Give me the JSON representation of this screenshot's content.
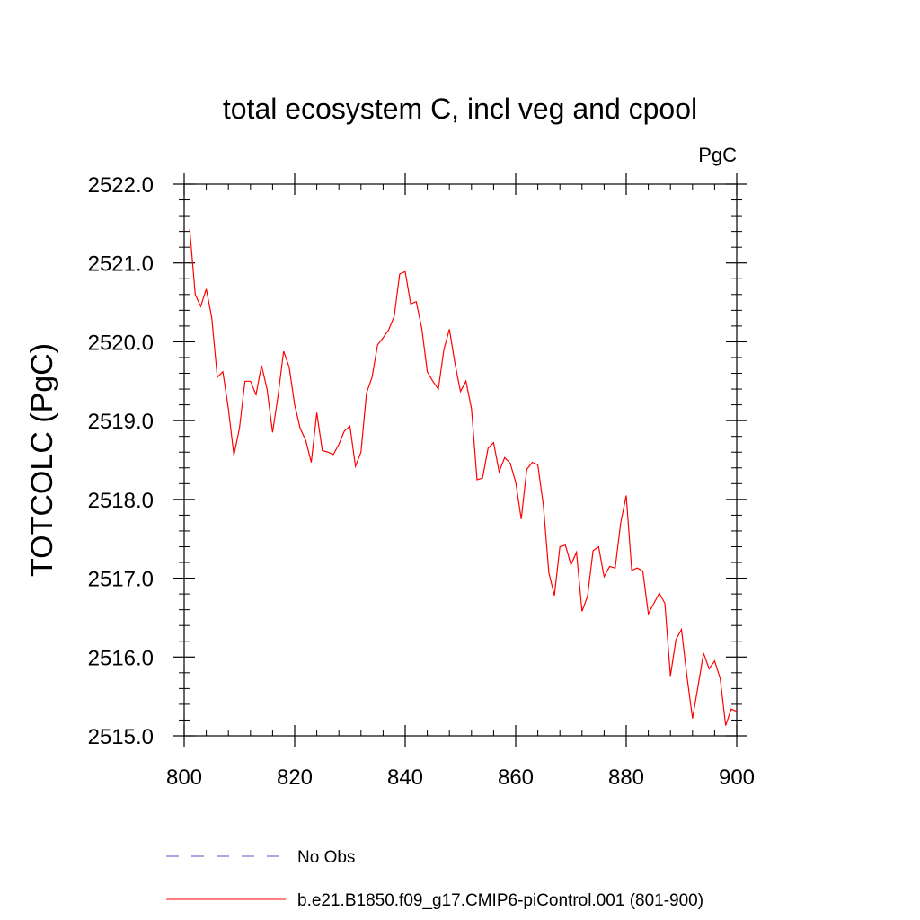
{
  "chart_data": {
    "type": "line",
    "title": "total ecosystem C, incl veg and cpool",
    "units_label": "PgC",
    "ylabel": "TOTCOLC  (PgC)",
    "xlabel": "",
    "xlim": [
      800,
      900
    ],
    "ylim": [
      2515.0,
      2522.0
    ],
    "x_ticks": [
      800,
      820,
      840,
      860,
      880,
      900
    ],
    "x_tick_labels": [
      "800",
      "820",
      "840",
      "860",
      "880",
      "900"
    ],
    "y_ticks": [
      2515.0,
      2516.0,
      2517.0,
      2518.0,
      2519.0,
      2520.0,
      2521.0,
      2522.0
    ],
    "y_tick_labels": [
      "2515.0",
      "2516.0",
      "2517.0",
      "2518.0",
      "2519.0",
      "2520.0",
      "2521.0",
      "2522.0"
    ],
    "grid": false,
    "legend_position": "bottom",
    "series": [
      {
        "name": "b.e21.B1850.f09_g17.CMIP6-piControl.001 (801-900)",
        "color": "#ff0000",
        "style": "solid",
        "x": [
          801,
          802,
          803,
          804,
          805,
          806,
          807,
          808,
          809,
          810,
          811,
          812,
          813,
          814,
          815,
          816,
          817,
          818,
          819,
          820,
          821,
          822,
          823,
          824,
          825,
          826,
          827,
          828,
          829,
          830,
          831,
          832,
          833,
          834,
          835,
          836,
          837,
          838,
          839,
          840,
          841,
          842,
          843,
          844,
          845,
          846,
          847,
          848,
          849,
          850,
          851,
          852,
          853,
          854,
          855,
          856,
          857,
          858,
          859,
          860,
          861,
          862,
          863,
          864,
          865,
          866,
          867,
          868,
          869,
          870,
          871,
          872,
          873,
          874,
          875,
          876,
          877,
          878,
          879,
          880,
          881,
          882,
          883,
          884,
          885,
          886,
          887,
          888,
          889,
          890,
          891,
          892,
          893,
          894,
          895,
          896,
          897,
          898,
          899,
          900
        ],
        "values": [
          2521.43,
          2520.6,
          2520.45,
          2520.67,
          2520.3,
          2519.55,
          2519.62,
          2519.15,
          2518.56,
          2518.9,
          2519.5,
          2519.5,
          2519.33,
          2519.7,
          2519.4,
          2518.85,
          2519.32,
          2519.88,
          2519.68,
          2519.2,
          2518.9,
          2518.75,
          2518.47,
          2519.1,
          2518.62,
          2518.6,
          2518.57,
          2518.7,
          2518.87,
          2518.93,
          2518.42,
          2518.6,
          2519.35,
          2519.55,
          2519.96,
          2520.05,
          2520.15,
          2520.32,
          2520.86,
          2520.89,
          2520.48,
          2520.51,
          2520.17,
          2519.62,
          2519.5,
          2519.4,
          2519.9,
          2520.16,
          2519.73,
          2519.37,
          2519.5,
          2519.15,
          2518.25,
          2518.27,
          2518.65,
          2518.72,
          2518.35,
          2518.53,
          2518.46,
          2518.22,
          2517.75,
          2518.38,
          2518.47,
          2518.44,
          2517.93,
          2517.07,
          2516.78,
          2517.4,
          2517.42,
          2517.17,
          2517.33,
          2516.58,
          2516.77,
          2517.35,
          2517.4,
          2517.02,
          2517.15,
          2517.13,
          2517.7,
          2518.05,
          2517.1,
          2517.13,
          2517.09,
          2516.55,
          2516.68,
          2516.81,
          2516.68,
          2515.76,
          2516.22,
          2516.35,
          2515.75,
          2515.22,
          2515.63,
          2516.05,
          2515.85,
          2515.95,
          2515.73,
          2515.13,
          2515.34,
          2515.31
        ]
      },
      {
        "name": "No Obs",
        "color": "#5a4fbf",
        "style": "dashed",
        "x": [],
        "values": []
      }
    ]
  }
}
